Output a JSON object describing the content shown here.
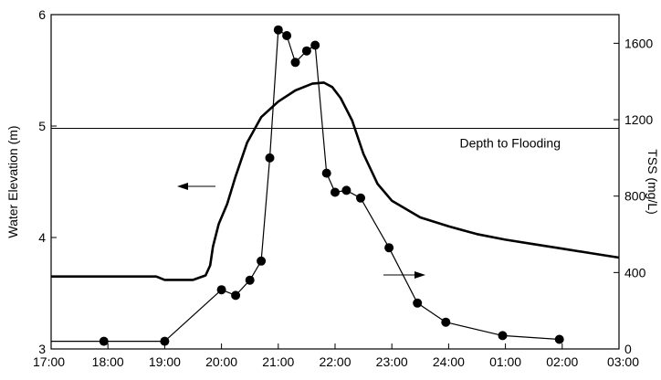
{
  "chart_data": {
    "type": "line",
    "title": "",
    "xlabel": "",
    "ylabel_left": "Water Elevation (m)",
    "ylabel_right": "TSS (mg/L)",
    "x_ticks": [
      "17:00",
      "18:00",
      "19:00",
      "20:00",
      "21:00",
      "22:00",
      "23:00",
      "24:00",
      "01:00",
      "02:00",
      "03:00"
    ],
    "xlim_hours": [
      17,
      27
    ],
    "y_left": {
      "lim": [
        3,
        6
      ],
      "ticks": [
        "3",
        "4",
        "5",
        "6"
      ]
    },
    "y_right": {
      "lim": [
        0,
        1750
      ],
      "ticks": [
        "0",
        "400",
        "800",
        "1200",
        "1600"
      ]
    },
    "grid": false,
    "reference_line": {
      "axis": "left",
      "value": 4.98,
      "label": "Depth to Flooding"
    },
    "series": [
      {
        "axis": "left",
        "style": "thick-line",
        "x": [
          17.0,
          17.5,
          18.0,
          18.5,
          18.85,
          19.0,
          19.5,
          19.72,
          19.8,
          19.85,
          19.95,
          20.1,
          20.25,
          20.45,
          20.7,
          21.0,
          21.3,
          21.6,
          21.8,
          21.95,
          22.1,
          22.3,
          22.5,
          22.75,
          23.0,
          23.5,
          24.0,
          24.5,
          25.0,
          25.5,
          26.0,
          26.5,
          27.0
        ],
        "y": [
          3.65,
          3.65,
          3.65,
          3.65,
          3.65,
          3.62,
          3.62,
          3.66,
          3.75,
          3.92,
          4.12,
          4.3,
          4.55,
          4.85,
          5.08,
          5.22,
          5.32,
          5.38,
          5.39,
          5.35,
          5.25,
          5.05,
          4.75,
          4.48,
          4.33,
          4.18,
          4.1,
          4.03,
          3.98,
          3.94,
          3.9,
          3.86,
          3.82
        ]
      },
      {
        "axis": "right",
        "style": "line-markers",
        "x": [
          17.0,
          17.93,
          19.0,
          20.0,
          20.25,
          20.5,
          20.7,
          20.85,
          21.0,
          21.15,
          21.3,
          21.5,
          21.65,
          21.85,
          22.0,
          22.2,
          22.45,
          22.95,
          23.45,
          23.95,
          24.95,
          25.95
        ],
        "y": [
          40,
          40,
          40,
          310,
          280,
          360,
          460,
          1000,
          1670,
          1640,
          1500,
          1560,
          1590,
          920,
          820,
          830,
          790,
          530,
          240,
          140,
          70,
          50
        ],
        "marker_at_index_start": 1
      }
    ],
    "arrows": [
      {
        "points_to": "left",
        "series": "Water Elevation (m)"
      },
      {
        "points_to": "right",
        "series": "TSS (mg/L)"
      }
    ]
  }
}
